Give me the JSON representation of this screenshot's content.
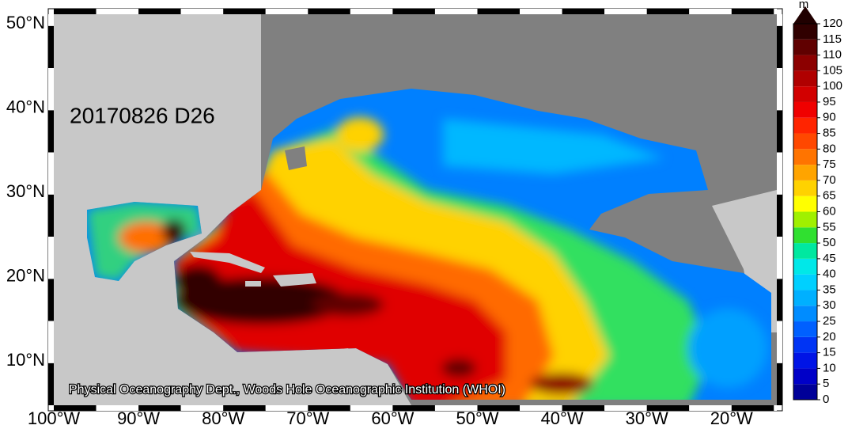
{
  "map": {
    "label": "20170826 D26",
    "credit": "Physical Oceanography Dept., Woods Hole Oceanographic Institution (WHOI)",
    "lon_labels": [
      "100°W",
      "90°W",
      "80°W",
      "70°W",
      "60°W",
      "50°W",
      "40°W",
      "30°W",
      "20°W"
    ],
    "lat_labels": [
      "50°N",
      "40°N",
      "30°N",
      "20°N",
      "10°N"
    ]
  },
  "colorbar": {
    "unit": "m",
    "lim": [
      0,
      120
    ],
    "ticks": [
      0,
      5,
      10,
      15,
      20,
      25,
      30,
      35,
      40,
      45,
      50,
      55,
      60,
      65,
      70,
      75,
      80,
      85,
      90,
      95,
      100,
      105,
      110,
      115,
      120
    ],
    "colors": [
      "#000098",
      "#0000c8",
      "#0014e6",
      "#0034f4",
      "#0060ff",
      "#008cff",
      "#00b0ff",
      "#00d0ff",
      "#00e8e8",
      "#00e8a0",
      "#30e030",
      "#a0f000",
      "#ffff00",
      "#ffd200",
      "#ffa400",
      "#ff7400",
      "#ff4800",
      "#ff2400",
      "#f00000",
      "#d20000",
      "#b00000",
      "#8c0000",
      "#600000",
      "#300000"
    ]
  }
}
